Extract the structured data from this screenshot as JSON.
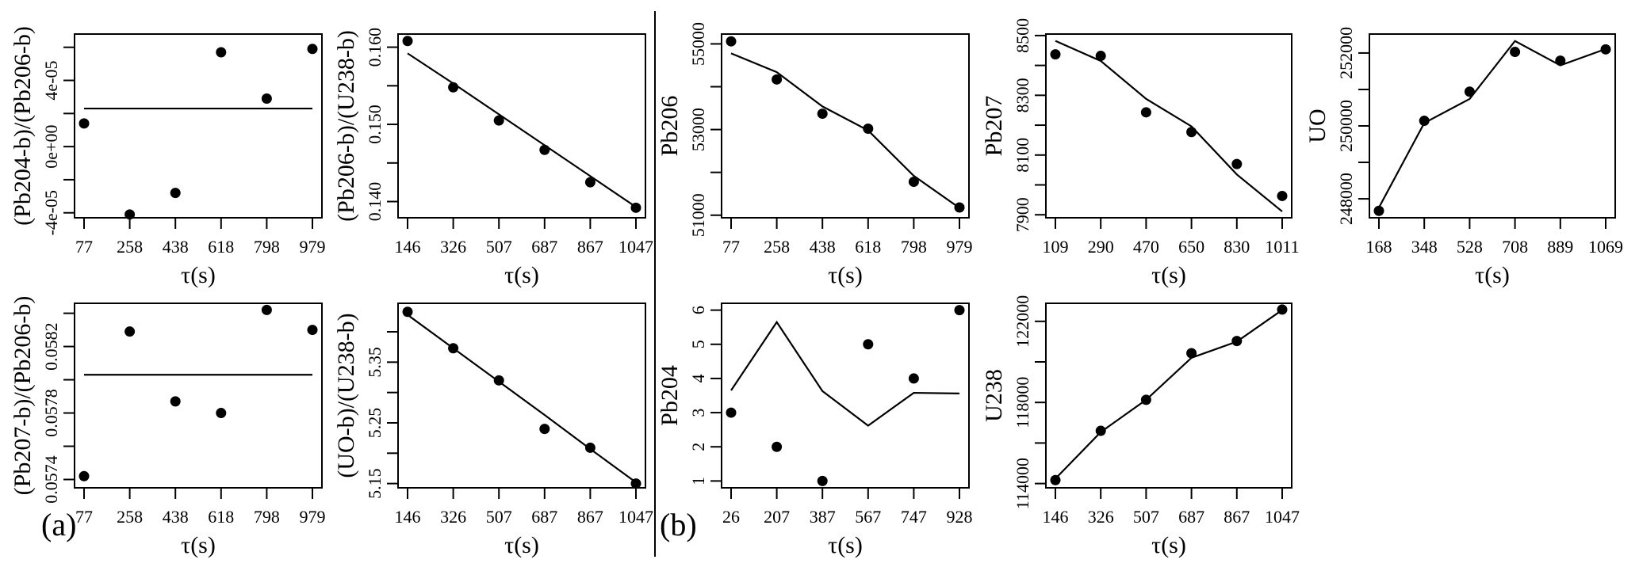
{
  "figure": {
    "panel_tags": [
      "(a)",
      "(b)"
    ],
    "colors": {
      "ink": "#000000",
      "background": "#ffffff"
    }
  },
  "chart_data": [
    {
      "id": "a1",
      "group": "(a)",
      "type": "scatter",
      "xlabel": "τ(s)",
      "ylabel": "(Pb204-b)/(Pb206-b)",
      "x": [
        77,
        258,
        438,
        618,
        798,
        979
      ],
      "xticks": [
        "77",
        "258",
        "438",
        "618",
        "798",
        "979"
      ],
      "yticks": [
        -4e-05,
        -2e-05,
        0,
        2e-05,
        4e-05,
        6e-05
      ],
      "ytick_labels": [
        "-4e-05",
        "",
        "0e+00",
        "",
        "4e-05",
        ""
      ],
      "ylim": [
        -4.3e-05,
        6.8e-05
      ],
      "points": [
        1.4e-05,
        -4.1e-05,
        -2.8e-05,
        5.7e-05,
        2.9e-05,
        5.9e-05
      ],
      "fit": [
        2.3e-05,
        2.3e-05,
        2.3e-05,
        2.3e-05,
        2.3e-05,
        2.3e-05
      ]
    },
    {
      "id": "a2",
      "group": "(a)",
      "type": "scatter",
      "xlabel": "τ(s)",
      "ylabel": "(Pb206-b)/(U238-b)",
      "x": [
        146,
        326,
        507,
        687,
        867,
        1047
      ],
      "xticks": [
        "146",
        "326",
        "507",
        "687",
        "867",
        "1047"
      ],
      "yticks": [
        0.14,
        0.145,
        0.15,
        0.155,
        0.16
      ],
      "ytick_labels": [
        "0.140",
        "",
        "0.150",
        "",
        "0.160"
      ],
      "ylim": [
        0.1379,
        0.1617
      ],
      "points": [
        0.1608,
        0.1548,
        0.1505,
        0.1467,
        0.1425,
        0.1392
      ],
      "fit": [
        0.1592,
        0.1553,
        0.1513,
        0.1473,
        0.1433,
        0.1393
      ]
    },
    {
      "id": "a3",
      "group": "(a)",
      "type": "scatter",
      "xlabel": "τ(s)",
      "ylabel": "(Pb207-b)/(Pb206-b)",
      "x": [
        77,
        258,
        438,
        618,
        798,
        979
      ],
      "xticks": [
        "77",
        "258",
        "438",
        "618",
        "798",
        "979"
      ],
      "yticks": [
        0.0574,
        0.0576,
        0.0578,
        0.058,
        0.0582,
        0.0584
      ],
      "ytick_labels": [
        "0.0574",
        "",
        "0.0578",
        "",
        "0.0582",
        ""
      ],
      "ylim": [
        0.05735,
        0.05846
      ],
      "points": [
        0.05742,
        0.05829,
        0.05787,
        0.0578,
        0.05842,
        0.0583
      ],
      "fit": [
        0.05803,
        0.05803,
        0.05803,
        0.05803,
        0.05803,
        0.05803
      ]
    },
    {
      "id": "a4",
      "group": "(a)",
      "type": "scatter",
      "xlabel": "τ(s)",
      "ylabel": "(UO-b)/(U238-b)",
      "x": [
        146,
        326,
        507,
        687,
        867,
        1047
      ],
      "xticks": [
        "146",
        "326",
        "507",
        "687",
        "867",
        "1047"
      ],
      "yticks": [
        5.15,
        5.2,
        5.25,
        5.3,
        5.35,
        5.4
      ],
      "ytick_labels": [
        "5.15",
        "",
        "5.25",
        "",
        "5.35",
        ""
      ],
      "ylim": [
        5.143,
        5.447
      ],
      "points": [
        5.433,
        5.373,
        5.32,
        5.24,
        5.209,
        5.15
      ],
      "fit": [
        5.428,
        5.373,
        5.318,
        5.263,
        5.207,
        5.152
      ]
    },
    {
      "id": "b1",
      "group": "(b)",
      "type": "scatter",
      "xlabel": "τ(s)",
      "ylabel": "Pb206",
      "x": [
        77,
        258,
        438,
        618,
        798,
        979
      ],
      "xticks": [
        "77",
        "258",
        "438",
        "618",
        "798",
        "979"
      ],
      "yticks": [
        51000,
        52000,
        53000,
        54000,
        55000
      ],
      "ytick_labels": [
        "51000",
        "",
        "53000",
        "",
        "55000"
      ],
      "ylim": [
        50940,
        55230
      ],
      "points": [
        55060,
        54170,
        53370,
        53020,
        51780,
        51180
      ],
      "fit": [
        54780,
        54340,
        53540,
        52980,
        51920,
        51170
      ]
    },
    {
      "id": "b2",
      "group": "(b)",
      "type": "scatter",
      "xlabel": "τ(s)",
      "ylabel": "Pb207",
      "x": [
        109,
        290,
        470,
        650,
        830,
        1011
      ],
      "xticks": [
        "109",
        "290",
        "470",
        "650",
        "830",
        "1011"
      ],
      "yticks": [
        7900,
        8000,
        8100,
        8200,
        8300,
        8400,
        8500
      ],
      "ytick_labels": [
        "7900",
        "",
        "8100",
        "",
        "8300",
        "",
        "8500"
      ],
      "ylim": [
        7890,
        8505
      ],
      "points": [
        8437,
        8432,
        8243,
        8177,
        8070,
        7963
      ],
      "fit": [
        8482,
        8415,
        8288,
        8196,
        8035,
        7911
      ]
    },
    {
      "id": "b3",
      "group": "(b)",
      "type": "scatter",
      "xlabel": "τ(s)",
      "ylabel": "UO",
      "x": [
        168,
        348,
        528,
        708,
        889,
        1069
      ],
      "xticks": [
        "168",
        "348",
        "528",
        "708",
        "889",
        "1069"
      ],
      "yticks": [
        248000,
        249000,
        250000,
        251000,
        252000
      ],
      "ytick_labels": [
        "248000",
        "",
        "250000",
        "",
        "252000"
      ],
      "ylim": [
        247480,
        252520
      ],
      "points": [
        247670,
        250140,
        250940,
        252030,
        251790,
        252100
      ],
      "fit": [
        247760,
        250080,
        250740,
        252330,
        251660,
        252110
      ]
    },
    {
      "id": "b4",
      "group": "(b)",
      "type": "scatter",
      "xlabel": "τ(s)",
      "ylabel": "Pb204",
      "x": [
        26,
        207,
        387,
        567,
        747,
        928
      ],
      "xticks": [
        "26",
        "207",
        "387",
        "567",
        "747",
        "928"
      ],
      "yticks": [
        1,
        2,
        3,
        4,
        5,
        6
      ],
      "ytick_labels": [
        "1",
        "2",
        "3",
        "4",
        "5",
        "6"
      ],
      "ylim": [
        0.8,
        6.2
      ],
      "points": [
        3,
        2,
        1,
        5,
        4,
        6
      ],
      "fit": [
        3.65,
        5.65,
        3.63,
        2.62,
        3.58,
        3.56
      ]
    },
    {
      "id": "b5",
      "group": "(b)",
      "type": "scatter",
      "xlabel": "τ(s)",
      "ylabel": "U238",
      "x": [
        146,
        326,
        507,
        687,
        867,
        1047
      ],
      "xticks": [
        "146",
        "326",
        "507",
        "687",
        "867",
        "1047"
      ],
      "yticks": [
        114000,
        116000,
        118000,
        120000,
        122000
      ],
      "ytick_labels": [
        "114000",
        "",
        "118000",
        "",
        "122000"
      ],
      "ylim": [
        113790,
        122890
      ],
      "points": [
        114170,
        116600,
        118130,
        120430,
        121030,
        122580
      ],
      "fit": [
        114240,
        116540,
        118130,
        120200,
        121000,
        122560
      ]
    }
  ]
}
